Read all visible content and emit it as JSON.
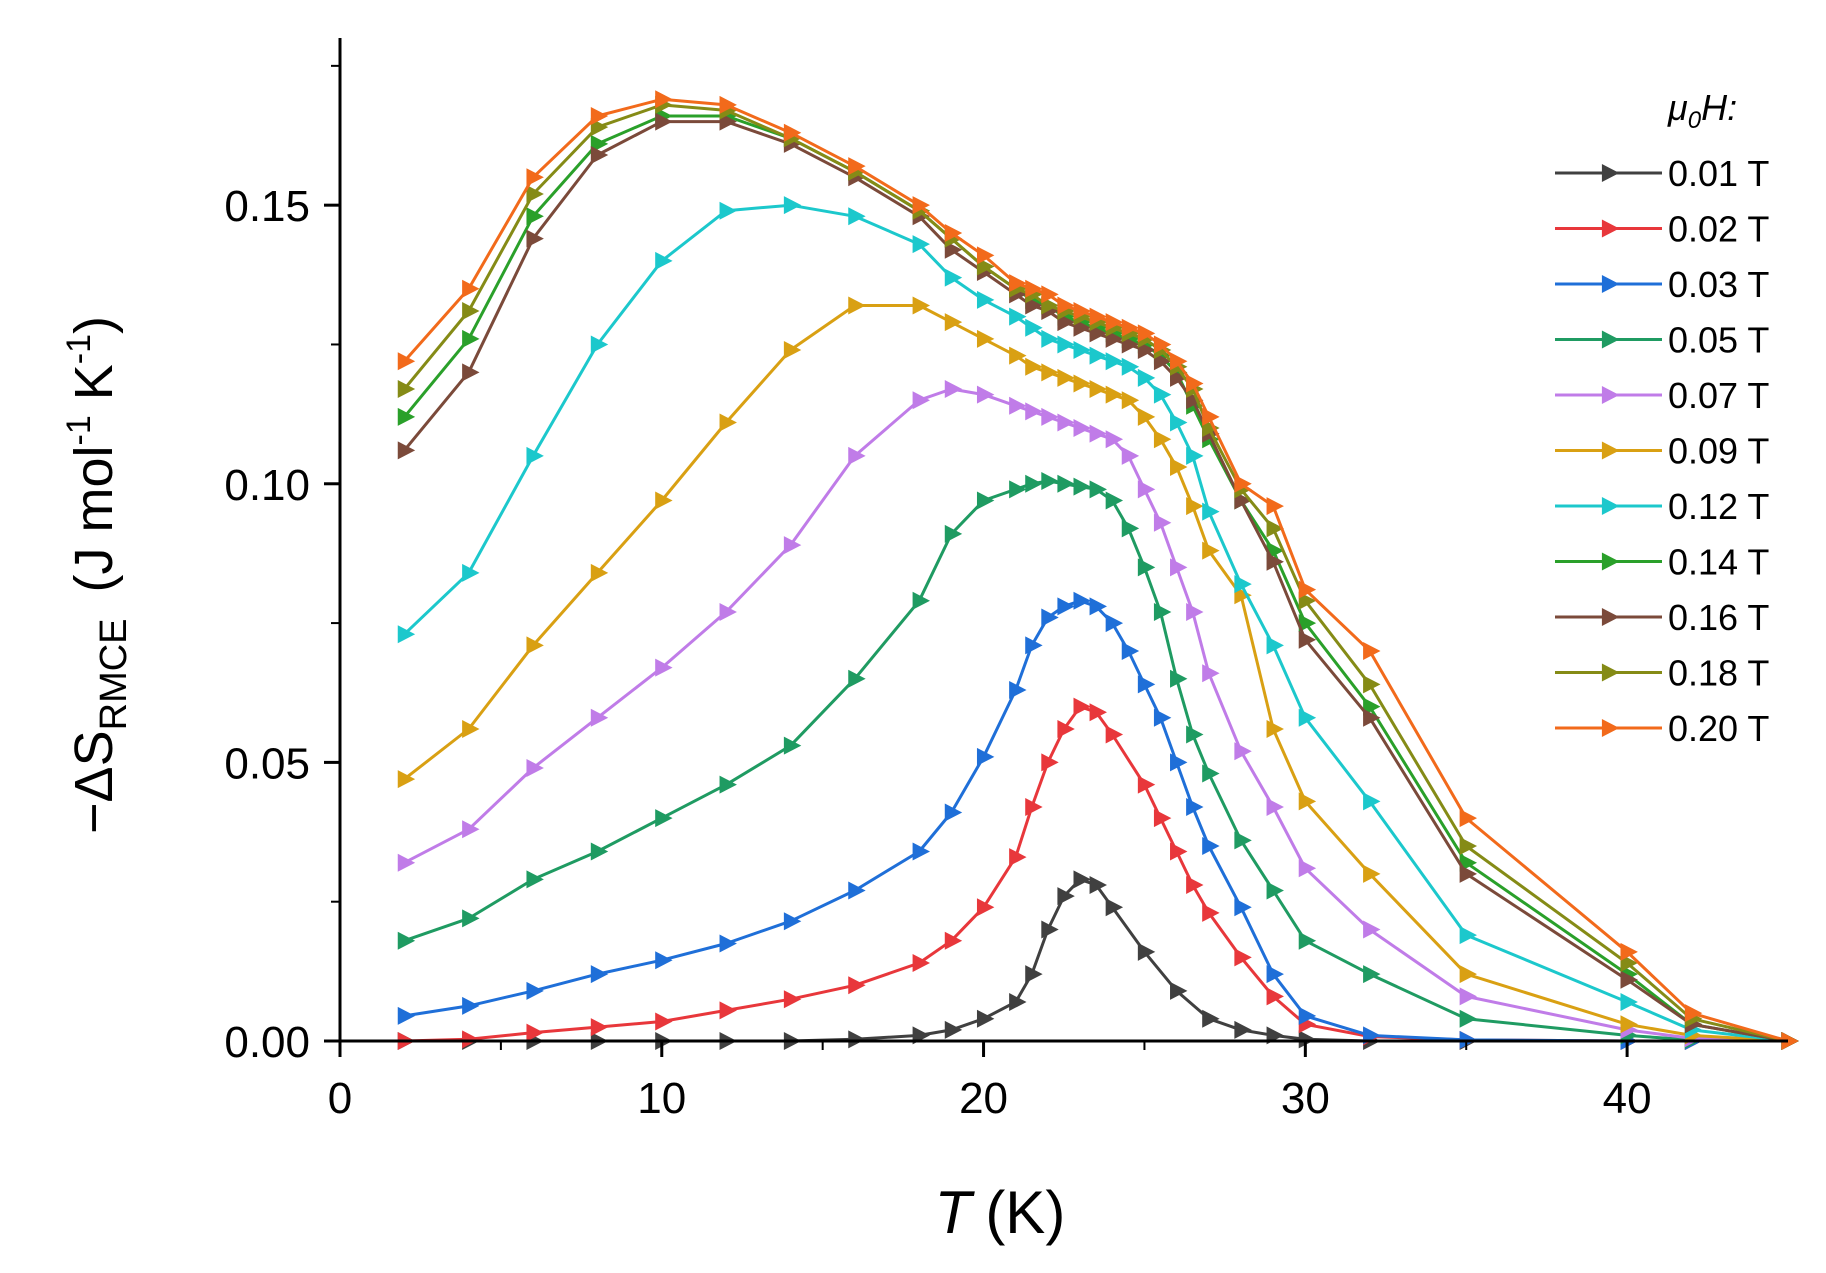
{
  "chart_data": {
    "type": "line",
    "xlabel": {
      "symbol": "T",
      "unit": "(K)"
    },
    "ylabel": {
      "prefix": "−ΔS",
      "subscript": "RMCE",
      "unit_a": "(J mol",
      "exp1": "-1",
      "unit_b": " K",
      "exp2": "-1",
      "close": ")"
    },
    "xlim": [
      0,
      45
    ],
    "ylim": [
      0,
      0.18
    ],
    "xticks": [
      0,
      10,
      20,
      30,
      40
    ],
    "xtick_labels": [
      "0",
      "10",
      "20",
      "30",
      "40"
    ],
    "yticks": [
      0,
      0.05,
      0.1,
      0.15
    ],
    "ytick_labels": [
      "0.00",
      "0.05",
      "0.10",
      "0.15"
    ],
    "legend_title": {
      "symbol": "μ",
      "sub": "0",
      "rest": "H:"
    },
    "legend_position": "top-right",
    "marker": "right-triangle",
    "series": [
      {
        "name": "0.01 T",
        "color": "#404040",
        "x": [
          2,
          4,
          6,
          8,
          10,
          12,
          14,
          16,
          18,
          19,
          20,
          21,
          21.5,
          22,
          22.5,
          23,
          23.5,
          24,
          25,
          26,
          27,
          28,
          29,
          30,
          32,
          35,
          40,
          42,
          45
        ],
        "y": [
          0,
          0,
          0,
          0,
          0,
          0,
          0,
          0.0003,
          0.001,
          0.002,
          0.004,
          0.007,
          0.012,
          0.02,
          0.026,
          0.029,
          0.028,
          0.024,
          0.016,
          0.009,
          0.004,
          0.002,
          0.001,
          0.0003,
          0,
          0,
          0,
          0,
          0
        ]
      },
      {
        "name": "0.02 T",
        "color": "#e8373b",
        "x": [
          2,
          4,
          6,
          8,
          10,
          12,
          14,
          16,
          18,
          19,
          20,
          21,
          21.5,
          22,
          22.5,
          23,
          23.5,
          24,
          25,
          25.5,
          26,
          26.5,
          27,
          28,
          29,
          30,
          32,
          35,
          40,
          42,
          45
        ],
        "y": [
          0,
          0.0003,
          0.0015,
          0.0025,
          0.0035,
          0.0055,
          0.0075,
          0.01,
          0.014,
          0.018,
          0.024,
          0.033,
          0.042,
          0.05,
          0.056,
          0.06,
          0.059,
          0.055,
          0.046,
          0.04,
          0.034,
          0.028,
          0.023,
          0.015,
          0.008,
          0.003,
          0.0008,
          0.0002,
          0,
          0,
          0
        ]
      },
      {
        "name": "0.03 T",
        "color": "#1f6fd8",
        "x": [
          2,
          4,
          6,
          8,
          10,
          12,
          14,
          16,
          18,
          19,
          20,
          21,
          21.5,
          22,
          22.5,
          23,
          23.5,
          24,
          24.5,
          25,
          25.5,
          26,
          26.5,
          27,
          28,
          29,
          30,
          32,
          35,
          40,
          42,
          45
        ],
        "y": [
          0.0045,
          0.0063,
          0.009,
          0.012,
          0.0145,
          0.0175,
          0.0215,
          0.027,
          0.034,
          0.041,
          0.051,
          0.063,
          0.071,
          0.076,
          0.078,
          0.079,
          0.078,
          0.075,
          0.07,
          0.064,
          0.058,
          0.05,
          0.042,
          0.035,
          0.024,
          0.012,
          0.0045,
          0.001,
          0.0002,
          0,
          0,
          0
        ]
      },
      {
        "name": "0.05 T",
        "color": "#1f9b62",
        "x": [
          2,
          4,
          6,
          8,
          10,
          12,
          14,
          16,
          18,
          19,
          20,
          21,
          21.5,
          22,
          22.5,
          23,
          23.5,
          24,
          24.5,
          25,
          25.5,
          26,
          26.5,
          27,
          28,
          29,
          30,
          32,
          35,
          40,
          42,
          45
        ],
        "y": [
          0.018,
          0.022,
          0.029,
          0.034,
          0.04,
          0.046,
          0.053,
          0.065,
          0.079,
          0.091,
          0.097,
          0.099,
          0.1,
          0.1005,
          0.1,
          0.0995,
          0.099,
          0.097,
          0.092,
          0.085,
          0.077,
          0.065,
          0.055,
          0.048,
          0.036,
          0.027,
          0.018,
          0.012,
          0.004,
          0.001,
          0.0002,
          0
        ]
      },
      {
        "name": "0.07 T",
        "color": "#c07ce8",
        "x": [
          2,
          4,
          6,
          8,
          10,
          12,
          14,
          16,
          18,
          19,
          20,
          21,
          21.5,
          22,
          22.5,
          23,
          23.5,
          24,
          24.5,
          25,
          25.5,
          26,
          26.5,
          27,
          28,
          29,
          30,
          32,
          35,
          40,
          42,
          45
        ],
        "y": [
          0.032,
          0.038,
          0.049,
          0.058,
          0.067,
          0.077,
          0.089,
          0.105,
          0.115,
          0.117,
          0.116,
          0.114,
          0.113,
          0.112,
          0.111,
          0.11,
          0.109,
          0.108,
          0.105,
          0.099,
          0.093,
          0.085,
          0.077,
          0.066,
          0.052,
          0.042,
          0.031,
          0.02,
          0.008,
          0.002,
          0.0005,
          0
        ]
      },
      {
        "name": "0.09 T",
        "color": "#d9a013",
        "x": [
          2,
          4,
          6,
          8,
          10,
          12,
          14,
          16,
          18,
          19,
          20,
          21,
          21.5,
          22,
          22.5,
          23,
          23.5,
          24,
          24.5,
          25,
          25.5,
          26,
          26.5,
          27,
          28,
          29,
          30,
          32,
          35,
          40,
          42,
          45
        ],
        "y": [
          0.047,
          0.056,
          0.071,
          0.084,
          0.097,
          0.111,
          0.124,
          0.132,
          0.132,
          0.129,
          0.126,
          0.123,
          0.121,
          0.12,
          0.119,
          0.118,
          0.117,
          0.116,
          0.115,
          0.112,
          0.108,
          0.103,
          0.096,
          0.088,
          0.08,
          0.056,
          0.043,
          0.03,
          0.012,
          0.003,
          0.001,
          0
        ]
      },
      {
        "name": "0.12 T",
        "color": "#1cc8cc",
        "x": [
          2,
          4,
          6,
          8,
          10,
          12,
          14,
          16,
          18,
          19,
          20,
          21,
          21.5,
          22,
          22.5,
          23,
          23.5,
          24,
          24.5,
          25,
          25.5,
          26,
          26.5,
          27,
          28,
          29,
          30,
          32,
          35,
          40,
          42,
          45
        ],
        "y": [
          0.073,
          0.084,
          0.105,
          0.125,
          0.14,
          0.149,
          0.15,
          0.148,
          0.143,
          0.137,
          0.133,
          0.13,
          0.128,
          0.126,
          0.125,
          0.124,
          0.123,
          0.122,
          0.121,
          0.119,
          0.116,
          0.111,
          0.105,
          0.095,
          0.082,
          0.071,
          0.058,
          0.043,
          0.019,
          0.007,
          0.002,
          0
        ]
      },
      {
        "name": "0.14 T",
        "color": "#2aa02a",
        "x": [
          2,
          4,
          6,
          8,
          10,
          12,
          14,
          16,
          18,
          19,
          20,
          21,
          21.5,
          22,
          22.5,
          23,
          23.5,
          24,
          24.5,
          25,
          25.5,
          26,
          26.5,
          27,
          28,
          29,
          30,
          32,
          35,
          40,
          42,
          45
        ],
        "y": [
          0.112,
          0.126,
          0.148,
          0.161,
          0.166,
          0.166,
          0.162,
          0.156,
          0.149,
          0.144,
          0.139,
          0.135,
          0.133,
          0.132,
          0.13,
          0.129,
          0.128,
          0.127,
          0.126,
          0.125,
          0.123,
          0.12,
          0.114,
          0.108,
          0.097,
          0.088,
          0.075,
          0.06,
          0.032,
          0.012,
          0.003,
          0
        ]
      },
      {
        "name": "0.16 T",
        "color": "#7b4a3a",
        "x": [
          2,
          4,
          6,
          8,
          10,
          12,
          14,
          16,
          18,
          19,
          20,
          21,
          21.5,
          22,
          22.5,
          23,
          23.5,
          24,
          24.5,
          25,
          25.5,
          26,
          26.5,
          27,
          28,
          29,
          30,
          32,
          35,
          40,
          42,
          45
        ],
        "y": [
          0.106,
          0.12,
          0.144,
          0.159,
          0.165,
          0.165,
          0.161,
          0.155,
          0.148,
          0.142,
          0.138,
          0.134,
          0.132,
          0.131,
          0.129,
          0.128,
          0.127,
          0.126,
          0.125,
          0.124,
          0.122,
          0.119,
          0.115,
          0.109,
          0.097,
          0.086,
          0.072,
          0.058,
          0.03,
          0.011,
          0.003,
          0
        ]
      },
      {
        "name": "0.18 T",
        "color": "#858b16",
        "x": [
          2,
          4,
          6,
          8,
          10,
          12,
          14,
          16,
          18,
          19,
          20,
          21,
          21.5,
          22,
          22.5,
          23,
          23.5,
          24,
          24.5,
          25,
          25.5,
          26,
          26.5,
          27,
          28,
          29,
          30,
          32,
          35,
          40,
          42,
          45
        ],
        "y": [
          0.117,
          0.131,
          0.152,
          0.164,
          0.168,
          0.167,
          0.162,
          0.156,
          0.149,
          0.144,
          0.139,
          0.135,
          0.134,
          0.132,
          0.131,
          0.13,
          0.129,
          0.128,
          0.127,
          0.126,
          0.124,
          0.121,
          0.117,
          0.11,
          0.099,
          0.092,
          0.079,
          0.064,
          0.035,
          0.014,
          0.004,
          0
        ]
      },
      {
        "name": "0.20 T",
        "color": "#f26a1b",
        "x": [
          2,
          4,
          6,
          8,
          10,
          12,
          14,
          16,
          18,
          19,
          20,
          21,
          21.5,
          22,
          22.5,
          23,
          23.5,
          24,
          24.5,
          25,
          25.5,
          26,
          26.5,
          27,
          28,
          29,
          30,
          32,
          35,
          40,
          42,
          45
        ],
        "y": [
          0.122,
          0.135,
          0.155,
          0.166,
          0.169,
          0.168,
          0.163,
          0.157,
          0.15,
          0.145,
          0.141,
          0.136,
          0.135,
          0.134,
          0.132,
          0.131,
          0.13,
          0.129,
          0.128,
          0.127,
          0.125,
          0.122,
          0.118,
          0.112,
          0.1,
          0.096,
          0.081,
          0.07,
          0.04,
          0.016,
          0.005,
          0
        ]
      }
    ]
  }
}
